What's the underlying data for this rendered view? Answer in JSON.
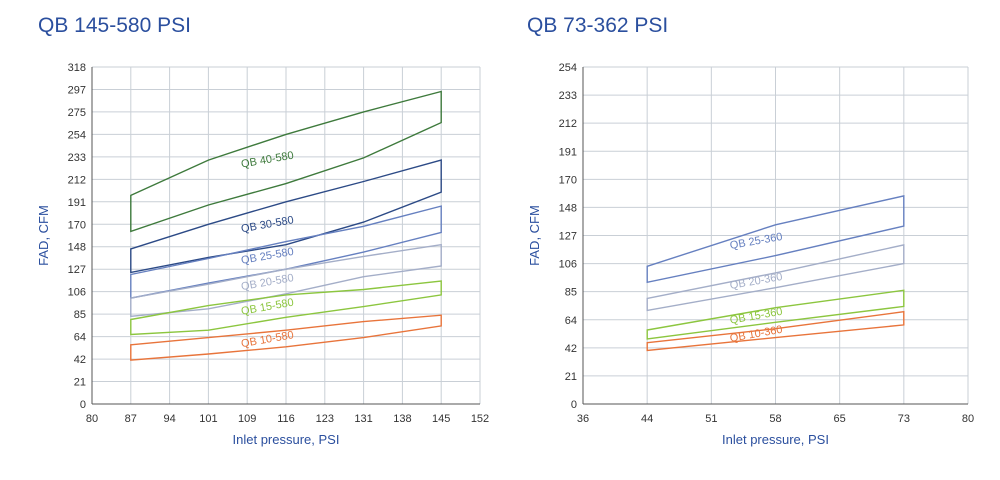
{
  "chart_data": [
    {
      "type": "area",
      "title": "QB 145-580 PSI",
      "xlabel": "Inlet pressure, PSI",
      "ylabel": "FAD, CFM",
      "xticks": [
        "80",
        "87",
        "94",
        "101",
        "109",
        "116",
        "123",
        "131",
        "138",
        "145",
        "152"
      ],
      "yticks": [
        "0",
        "21",
        "42",
        "64",
        "85",
        "106",
        "127",
        "148",
        "170",
        "191",
        "212",
        "233",
        "254",
        "275",
        "297",
        "318"
      ],
      "grid": true,
      "series": [
        {
          "name": "QB 40-580",
          "color": "#3e7a3c",
          "x": [
            87,
            101,
            116,
            131,
            145
          ],
          "upper": [
            197,
            230,
            254,
            275,
            295
          ],
          "lower": [
            163,
            188,
            208,
            232,
            265
          ]
        },
        {
          "name": "QB 30-580",
          "color": "#2c4a86",
          "x": [
            87,
            101,
            116,
            131,
            145
          ],
          "upper": [
            146,
            170,
            191,
            210,
            230
          ],
          "lower": [
            124,
            138,
            150,
            172,
            200
          ]
        },
        {
          "name": "QB 25-580",
          "color": "#6680c0",
          "x": [
            87,
            101,
            116,
            131,
            145
          ],
          "upper": [
            122,
            137,
            153,
            168,
            187
          ],
          "lower": [
            100,
            114,
            127,
            143,
            162
          ]
        },
        {
          "name": "QB 20-580",
          "color": "#a4aec8",
          "x": [
            87,
            101,
            116,
            131,
            145
          ],
          "upper": [
            100,
            113,
            127,
            139,
            150
          ],
          "lower": [
            83,
            90,
            104,
            120,
            130
          ]
        },
        {
          "name": "QB 15-580",
          "color": "#8cc63f",
          "x": [
            87,
            101,
            116,
            131,
            145
          ],
          "upper": [
            80,
            93,
            103,
            108,
            116
          ],
          "lower": [
            66,
            70,
            82,
            92,
            103
          ]
        },
        {
          "name": "QB 10-580",
          "color": "#e8743b",
          "x": [
            87,
            101,
            116,
            131,
            145
          ],
          "upper": [
            56,
            63,
            70,
            78,
            84
          ],
          "lower": [
            41,
            47,
            54,
            63,
            74
          ]
        }
      ]
    },
    {
      "type": "area",
      "title": "QB 73-362 PSI",
      "xlabel": "Inlet pressure, PSI",
      "ylabel": "FAD, CFM",
      "xticks": [
        "36",
        "44",
        "51",
        "58",
        "65",
        "73",
        "80"
      ],
      "yticks": [
        "0",
        "21",
        "42",
        "64",
        "85",
        "106",
        "127",
        "148",
        "170",
        "191",
        "212",
        "233",
        "254"
      ],
      "grid": true,
      "series": [
        {
          "name": "QB 25-360",
          "color": "#6680c0",
          "x": [
            44,
            58,
            73
          ],
          "upper": [
            104,
            135,
            157
          ],
          "lower": [
            92,
            112,
            134
          ]
        },
        {
          "name": "QB 20-360",
          "color": "#a4aec8",
          "x": [
            44,
            58,
            73
          ],
          "upper": [
            80,
            99,
            120
          ],
          "lower": [
            71,
            88,
            106
          ]
        },
        {
          "name": "QB 15-360",
          "color": "#8cc63f",
          "x": [
            44,
            58,
            73
          ],
          "upper": [
            56,
            73,
            86
          ],
          "lower": [
            49,
            62,
            74
          ]
        },
        {
          "name": "QB 10-360",
          "color": "#e8743b",
          "x": [
            44,
            58,
            73
          ],
          "upper": [
            46,
            57,
            70
          ],
          "lower": [
            40,
            50,
            60
          ]
        }
      ]
    }
  ]
}
